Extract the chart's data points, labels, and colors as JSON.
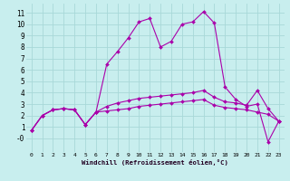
{
  "xlabel": "Windchill (Refroidissement éolien,°C)",
  "background_color": "#c8eeee",
  "grid_color": "#a8d8d8",
  "line_color": "#aa00aa",
  "xlim": [
    -0.5,
    23.5
  ],
  "ylim": [
    -1.2,
    11.8
  ],
  "xticks": [
    0,
    1,
    2,
    3,
    4,
    5,
    6,
    7,
    8,
    9,
    10,
    11,
    12,
    13,
    14,
    15,
    16,
    17,
    18,
    19,
    20,
    21,
    22,
    23
  ],
  "yticks": [
    0,
    1,
    2,
    3,
    4,
    5,
    6,
    7,
    8,
    9,
    10,
    11
  ],
  "ytick_labels": [
    "-0",
    "1",
    "2",
    "3",
    "4",
    "5",
    "6",
    "7",
    "8",
    "9",
    "10",
    "11"
  ],
  "series": [
    [
      0.7,
      2.0,
      2.5,
      2.6,
      2.5,
      1.2,
      2.3,
      2.4,
      2.5,
      2.6,
      2.8,
      2.9,
      3.0,
      3.1,
      3.2,
      3.3,
      3.4,
      2.9,
      2.7,
      2.6,
      2.5,
      2.3,
      2.1,
      1.5
    ],
    [
      0.7,
      2.0,
      2.5,
      2.6,
      2.5,
      1.2,
      2.3,
      2.8,
      3.1,
      3.3,
      3.5,
      3.6,
      3.7,
      3.8,
      3.9,
      4.0,
      4.2,
      3.6,
      3.2,
      3.1,
      2.9,
      4.2,
      2.6,
      1.5
    ],
    [
      0.7,
      2.0,
      2.5,
      2.6,
      2.5,
      1.2,
      2.3,
      6.5,
      7.6,
      8.8,
      10.2,
      10.5,
      8.0,
      8.5,
      10.0,
      10.2,
      11.1,
      10.1,
      4.5,
      3.4,
      2.8,
      3.0,
      -0.3,
      1.5
    ]
  ]
}
